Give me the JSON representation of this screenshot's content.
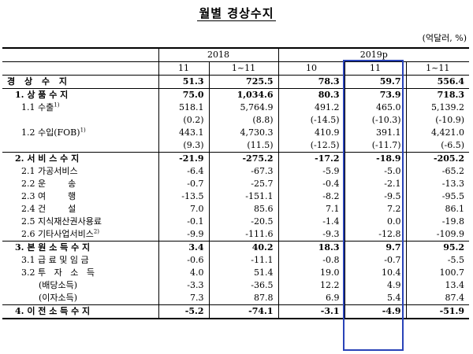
{
  "title": "월별 경상수지",
  "unit": "(억달러, %)",
  "header": {
    "years": [
      "2018",
      "2019p"
    ],
    "months": [
      "11",
      "1~11",
      "10",
      "11",
      "1~11"
    ]
  },
  "rows": [
    {
      "label": "경 상 수 지",
      "values": [
        "51.3",
        "725.5",
        "78.3",
        "59.7",
        "556.4"
      ]
    },
    {
      "label": "1. 상 품 수 지",
      "values": [
        "75.0",
        "1,034.6",
        "80.3",
        "73.9",
        "718.3"
      ]
    },
    {
      "label": "1.1 수출",
      "sup": "1)",
      "values": [
        "518.1",
        "5,764.9",
        "491.2",
        "465.0",
        "5,139.2"
      ]
    },
    {
      "label": "",
      "values": [
        "(0.2)",
        "(8.8)",
        "(-14.5)",
        "(-10.3)",
        "(-10.9)"
      ]
    },
    {
      "label": "1.2 수입(FOB)",
      "sup": "1)",
      "values": [
        "443.1",
        "4,730.3",
        "410.9",
        "391.1",
        "4,421.0"
      ]
    },
    {
      "label": "",
      "values": [
        "(9.3)",
        "(11.5)",
        "(-12.5)",
        "(-11.7)",
        "(-6.5)"
      ]
    },
    {
      "label": "2. 서 비 스 수 지",
      "values": [
        "-21.9",
        "-275.2",
        "-17.2",
        "-18.9",
        "-205.2"
      ]
    },
    {
      "label": "2.1 가공서비스",
      "values": [
        "-6.4",
        "-67.3",
        "-5.9",
        "-5.0",
        "-65.2"
      ]
    },
    {
      "label": "2.2 운        송",
      "values": [
        "-0.7",
        "-25.7",
        "-0.4",
        "-2.1",
        "-13.3"
      ]
    },
    {
      "label": "2.3 여        행",
      "values": [
        "-13.5",
        "-151.1",
        "-8.2",
        "-9.5",
        "-95.5"
      ]
    },
    {
      "label": "2.4 건        설",
      "values": [
        "7.0",
        "85.6",
        "7.1",
        "7.2",
        "86.1"
      ]
    },
    {
      "label": "2.5 지식재산권사용료",
      "values": [
        "-0.1",
        "-20.5",
        "-1.4",
        "0.0",
        "-19.8"
      ]
    },
    {
      "label": "2.6 기타사업서비스",
      "sup": "2)",
      "values": [
        "-9.9",
        "-111.6",
        "-9.3",
        "-12.8",
        "-109.9"
      ]
    },
    {
      "label": "3. 본 원 소 득 수 지",
      "values": [
        "3.4",
        "40.2",
        "18.3",
        "9.7",
        "95.2"
      ]
    },
    {
      "label": "3.1 급 료 및 임 금",
      "values": [
        "-0.6",
        "-11.1",
        "-0.8",
        "-0.7",
        "-5.5"
      ]
    },
    {
      "label": "3.2 투   자   소   득",
      "values": [
        "4.0",
        "51.4",
        "19.0",
        "10.4",
        "100.7"
      ]
    },
    {
      "label": "(배당소득)",
      "values": [
        "-3.3",
        "-36.5",
        "12.2",
        "4.9",
        "13.4"
      ]
    },
    {
      "label": "(이자소득)",
      "values": [
        "7.3",
        "87.8",
        "6.9",
        "5.4",
        "87.4"
      ]
    },
    {
      "label": "4. 이 전 소 득 수 지",
      "values": [
        "-5.2",
        "-74.1",
        "-3.1",
        "-4.9",
        "-51.9"
      ]
    }
  ]
}
